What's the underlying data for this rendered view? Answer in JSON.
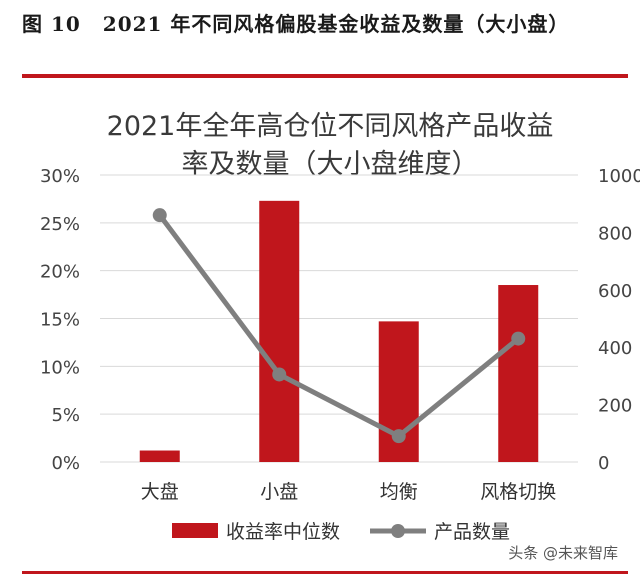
{
  "figure": {
    "number": "图 10",
    "caption": "2021 年不同风格偏股基金收益及数量（大小盘）"
  },
  "watermark": "头条 @未来智库",
  "chart_data": {
    "type": "bar",
    "title": "2021年全年高仓位不同风格产品收益率及数量（大小盘维度）",
    "title_lines": [
      "2021年全年高仓位不同风格产品收益",
      "率及数量（大小盘维度）"
    ],
    "categories": [
      "大盘",
      "小盘",
      "均衡",
      "风格切换"
    ],
    "series": [
      {
        "name": "收益率中位数",
        "type": "bar",
        "axis": "left",
        "color": "#c0161c",
        "values": [
          0.012,
          0.273,
          0.147,
          0.185
        ]
      },
      {
        "name": "产品数量",
        "type": "line",
        "axis": "right",
        "color": "#7f7f7f",
        "values": [
          860,
          305,
          90,
          430
        ]
      }
    ],
    "y_left": {
      "lim": [
        0,
        0.3
      ],
      "ticks": [
        "0%",
        "5%",
        "10%",
        "15%",
        "20%",
        "25%",
        "30%"
      ]
    },
    "y_right": {
      "lim": [
        0,
        1000
      ],
      "ticks": [
        "0",
        "200",
        "400",
        "600",
        "800",
        "1000"
      ]
    },
    "grid": true,
    "legend": "bottom"
  }
}
